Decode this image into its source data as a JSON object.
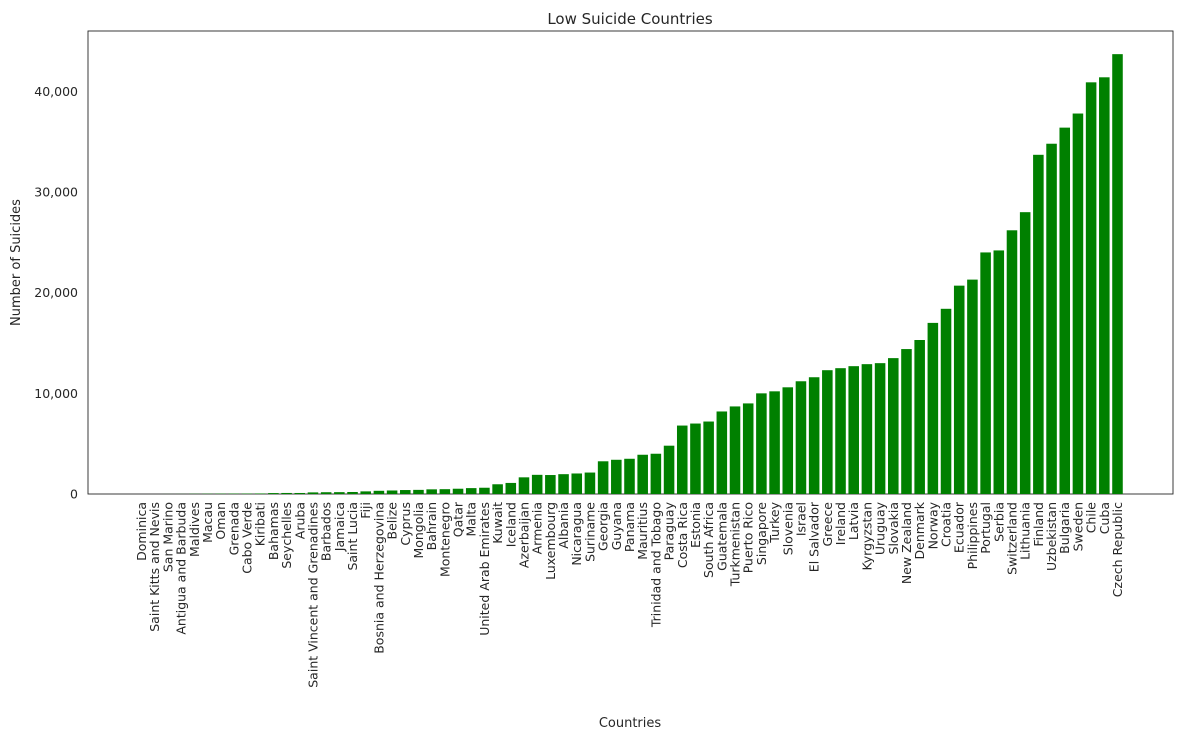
{
  "chart_data": {
    "type": "bar",
    "title": "Low Suicide Countries",
    "xlabel": "Countries",
    "ylabel": "Number of Suicides",
    "ylim": [
      0,
      46000
    ],
    "yticks": [
      0,
      10000,
      20000,
      30000,
      40000
    ],
    "ytick_labels": [
      "0",
      "10,000",
      "20,000",
      "30,000",
      "40,000"
    ],
    "grid": false,
    "bar_color": "#008000",
    "categories": [
      "Dominica",
      "Saint Kitts and Nevis",
      "San Marino",
      "Antigua and Barbuda",
      "Maldives",
      "Macau",
      "Oman",
      "Grenada",
      "Cabo Verde",
      "Kiribati",
      "Bahamas",
      "Seychelles",
      "Aruba",
      "Saint Vincent and Grenadines",
      "Barbados",
      "Jamaica",
      "Saint Lucia",
      "Fiji",
      "Bosnia and Herzegovina",
      "Belize",
      "Cyprus",
      "Mongolia",
      "Bahrain",
      "Montenegro",
      "Qatar",
      "Malta",
      "United Arab Emirates",
      "Kuwait",
      "Iceland",
      "Azerbaijan",
      "Armenia",
      "Luxembourg",
      "Albania",
      "Nicaragua",
      "Suriname",
      "Georgia",
      "Guyana",
      "Panama",
      "Mauritius",
      "Trinidad and Tobago",
      "Paraguay",
      "Costa Rica",
      "Estonia",
      "South Africa",
      "Guatemala",
      "Turkmenistan",
      "Puerto Rico",
      "Singapore",
      "Turkey",
      "Slovenia",
      "Israel",
      "El Salvador",
      "Greece",
      "Ireland",
      "Latvia",
      "Kyrgyzstan",
      "Uruguay",
      "Slovakia",
      "New Zealand",
      "Denmark",
      "Norway",
      "Croatia",
      "Ecuador",
      "Philippines",
      "Portugal",
      "Serbia",
      "Switzerland",
      "Lithuania",
      "Finland",
      "Uzbekistan",
      "Bulgaria",
      "Sweden",
      "Chile",
      "Cuba",
      "Czech Republic"
    ],
    "values": [
      0,
      0,
      4,
      8,
      20,
      27,
      33,
      39,
      42,
      53,
      93,
      103,
      101,
      160,
      177,
      184,
      200,
      260,
      318,
      350,
      393,
      410,
      463,
      480,
      524,
      585,
      622,
      967,
      1100,
      1656,
      1905,
      1885,
      1970,
      2039,
      2131,
      3250,
      3400,
      3500,
      3900,
      4000,
      4800,
      6800,
      7000,
      7200,
      8200,
      8700,
      9000,
      10000,
      10200,
      10600,
      11200,
      11600,
      12300,
      12500,
      12700,
      12900,
      13000,
      13500,
      14400,
      15300,
      17000,
      18400,
      20700,
      21300,
      24000,
      24200,
      26200,
      28000,
      33700,
      34800,
      36400,
      37800,
      40900,
      41400,
      43700
    ]
  }
}
